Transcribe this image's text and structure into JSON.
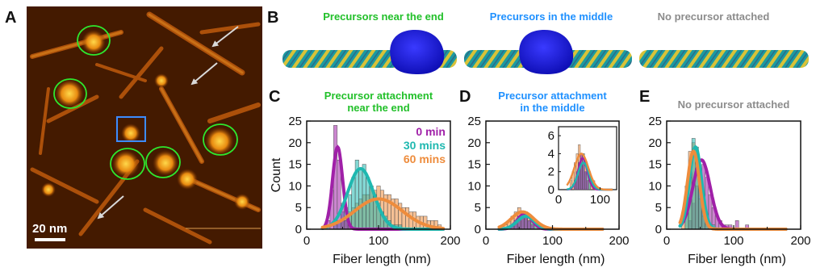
{
  "panel_labels": [
    "A",
    "B",
    "C",
    "D",
    "E"
  ],
  "panel_a": {
    "scale_bar": "20 nm"
  },
  "panel_b": {
    "headers": [
      {
        "text": "Precursors near the end",
        "color": "#22c02a"
      },
      {
        "text": "Precursors in the middle",
        "color": "#1e90ff"
      },
      {
        "text": "No precursor attached",
        "color": "#8c8c8c"
      }
    ]
  },
  "colors": {
    "purple": "#a020a8",
    "teal": "#1fb8b0",
    "orange": "#ee8c3c",
    "green_title": "#22c02a",
    "blue_title": "#1e90ff",
    "gray_title": "#8c8c8c"
  },
  "chart_data": [
    {
      "type": "bar",
      "panel": "C",
      "title": "Precursor attachment near the end",
      "title_lines": [
        "Precursor attachment",
        "near the end"
      ],
      "xlabel": "Fiber length (nm)",
      "ylabel": "Count",
      "xlim": [
        0,
        200
      ],
      "ylim": [
        0,
        25
      ],
      "xticks": [
        "0",
        "100",
        "200"
      ],
      "yticks": [
        "0",
        "5",
        "10",
        "15",
        "20",
        "25"
      ],
      "legend": [
        "0 min",
        "30 mins",
        "60 mins"
      ],
      "legend_position": "top-right",
      "series": [
        {
          "name": "0 min",
          "color": "purple",
          "x": [
            30,
            35,
            40,
            45,
            50,
            55,
            60
          ],
          "values": [
            2,
            9,
            24,
            16,
            6,
            2,
            1
          ],
          "fit": {
            "peak": 19,
            "mean": 43,
            "sd": 7
          }
        },
        {
          "name": "30 mins",
          "color": "teal",
          "x": [
            40,
            45,
            50,
            55,
            60,
            65,
            70,
            75,
            80,
            85,
            90,
            95,
            100,
            105,
            110,
            115,
            120,
            125,
            130
          ],
          "values": [
            1,
            2,
            4,
            5,
            8,
            12,
            16,
            14,
            15,
            12,
            10,
            8,
            6,
            4,
            3,
            2,
            1,
            1,
            1
          ],
          "fit": {
            "peak": 14,
            "mean": 75,
            "sd": 18
          }
        },
        {
          "name": "60 mins",
          "color": "orange",
          "x": [
            50,
            55,
            60,
            65,
            70,
            75,
            80,
            85,
            90,
            95,
            100,
            105,
            110,
            115,
            120,
            125,
            130,
            135,
            140,
            145,
            150,
            155,
            160,
            165,
            170,
            175,
            180,
            185
          ],
          "values": [
            2,
            3,
            4,
            5,
            6,
            7,
            8,
            8,
            10,
            9,
            10,
            9,
            8,
            8,
            7,
            7,
            6,
            5,
            5,
            4,
            4,
            3,
            3,
            3,
            2,
            2,
            2,
            1
          ],
          "fit": {
            "peak": 7,
            "mean": 100,
            "sd": 33
          }
        }
      ]
    },
    {
      "type": "bar",
      "panel": "D",
      "title": "Precursor attachment in the middle",
      "title_lines": [
        "Precursor attachment",
        "in the middle"
      ],
      "xlabel": "Fiber length (nm)",
      "ylabel": "",
      "xlim": [
        0,
        200
      ],
      "ylim": [
        0,
        25
      ],
      "xticks": [
        "0",
        "100",
        "200"
      ],
      "yticks": [
        "0",
        "5",
        "10",
        "15",
        "20",
        "25"
      ],
      "series": [
        {
          "name": "",
          "color": "purple",
          "x": [
            40,
            45,
            50,
            55,
            60,
            65,
            70
          ],
          "values": [
            1,
            2,
            3,
            4,
            3,
            2,
            1
          ],
          "fit": {
            "peak": 3.5,
            "mean": 58,
            "sd": 11
          }
        },
        {
          "name": "",
          "color": "teal",
          "x": [
            40,
            45,
            50,
            55,
            60,
            65,
            70,
            75
          ],
          "values": [
            1,
            2,
            3,
            3,
            4,
            2,
            2,
            1
          ],
          "fit": {
            "peak": 3,
            "mean": 60,
            "sd": 13
          }
        },
        {
          "name": "",
          "color": "orange",
          "x": [
            30,
            35,
            40,
            45,
            50,
            55,
            60,
            65,
            70,
            75,
            80,
            85
          ],
          "values": [
            1,
            2,
            3,
            4,
            5,
            4,
            4,
            3,
            2,
            2,
            1,
            1
          ],
          "fit": {
            "peak": 4,
            "mean": 55,
            "sd": 17
          }
        }
      ],
      "inset": {
        "xlim": [
          0,
          140
        ],
        "ylim": [
          0,
          7
        ],
        "xticks": [
          "0",
          "100"
        ],
        "yticks": [
          "0",
          "2",
          "4",
          "6"
        ]
      }
    },
    {
      "type": "bar",
      "panel": "E",
      "title": "No precursor attached",
      "title_lines": [
        "No precursor attached"
      ],
      "xlabel": "Fiber length (nm)",
      "ylabel": "",
      "xlim": [
        0,
        200
      ],
      "ylim": [
        0,
        25
      ],
      "xticks": [
        "0",
        "100",
        "200"
      ],
      "yticks": [
        "0",
        "5",
        "10",
        "15",
        "20",
        "25"
      ],
      "series": [
        {
          "name": "",
          "color": "purple",
          "x": [
            35,
            40,
            45,
            50,
            55,
            60,
            65,
            70,
            75,
            80,
            85,
            90,
            95,
            105,
            120
          ],
          "values": [
            2,
            6,
            10,
            14,
            15,
            12,
            8,
            5,
            3,
            2,
            1,
            1,
            1,
            2,
            1
          ],
          "fit": {
            "peak": 16,
            "mean": 52,
            "sd": 13
          }
        },
        {
          "name": "",
          "color": "teal",
          "x": [
            30,
            35,
            40,
            45,
            50,
            55,
            60,
            65,
            70
          ],
          "values": [
            4,
            12,
            21,
            19,
            12,
            6,
            3,
            1,
            1
          ],
          "fit": {
            "peak": 19,
            "mean": 43,
            "sd": 9
          }
        },
        {
          "name": "",
          "color": "orange",
          "x": [
            25,
            30,
            35,
            40,
            45,
            50,
            55,
            60
          ],
          "values": [
            3,
            10,
            18,
            20,
            14,
            7,
            3,
            1
          ],
          "fit": {
            "peak": 18,
            "mean": 40,
            "sd": 9
          }
        }
      ]
    }
  ]
}
